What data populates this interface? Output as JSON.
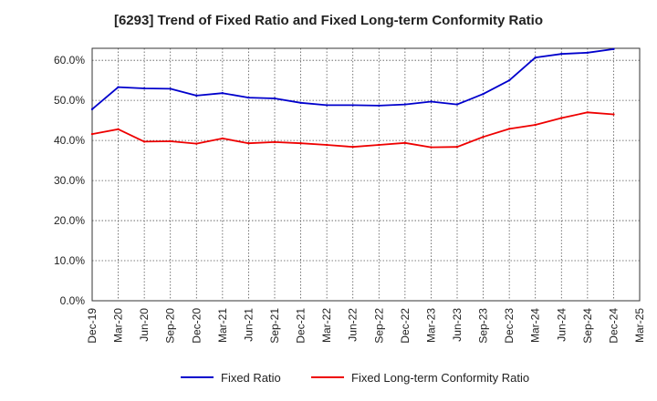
{
  "chart_data": {
    "type": "line",
    "title": "[6293]  Trend of Fixed Ratio and Fixed Long-term Conformity Ratio",
    "xlabel": "",
    "ylabel": "",
    "x_tick_labels": [
      "Dec-19",
      "Mar-20",
      "Jun-20",
      "Sep-20",
      "Dec-20",
      "Mar-21",
      "Jun-21",
      "Sep-21",
      "Dec-21",
      "Mar-22",
      "Jun-22",
      "Sep-22",
      "Dec-22",
      "Mar-23",
      "Jun-23",
      "Sep-23",
      "Dec-23",
      "Mar-24",
      "Jun-24",
      "Sep-24",
      "Dec-24",
      "Mar-25"
    ],
    "x": [
      "Dec-19",
      "Mar-20",
      "Jun-20",
      "Sep-20",
      "Dec-20",
      "Mar-21",
      "Jun-21",
      "Sep-21",
      "Dec-21",
      "Mar-22",
      "Jun-22",
      "Sep-22",
      "Dec-22",
      "Mar-23",
      "Jun-23",
      "Sep-23",
      "Dec-23",
      "Mar-24",
      "Jun-24",
      "Sep-24",
      "Dec-24"
    ],
    "ylim": [
      0,
      63
    ],
    "y_ticks": [
      0,
      10,
      20,
      30,
      40,
      50,
      60
    ],
    "y_tick_labels": [
      "0.0%",
      "10.0%",
      "20.0%",
      "30.0%",
      "40.0%",
      "50.0%",
      "60.0%"
    ],
    "grid": true,
    "legend_position": "bottom",
    "series": [
      {
        "name": "Fixed Ratio",
        "color": "#0000cc",
        "values": [
          47.8,
          53.3,
          53.0,
          52.9,
          51.2,
          51.8,
          50.7,
          50.5,
          49.4,
          48.8,
          48.8,
          48.7,
          49.0,
          49.7,
          49.0,
          51.6,
          55.0,
          60.7,
          61.6,
          61.9,
          62.8
        ]
      },
      {
        "name": "Fixed Long-term Conformity Ratio",
        "color": "#ee0000",
        "values": [
          41.6,
          42.8,
          39.7,
          39.8,
          39.2,
          40.5,
          39.3,
          39.6,
          39.3,
          38.9,
          38.4,
          38.9,
          39.4,
          38.3,
          38.4,
          40.9,
          42.9,
          43.9,
          45.6,
          47.0,
          46.5
        ]
      }
    ]
  }
}
